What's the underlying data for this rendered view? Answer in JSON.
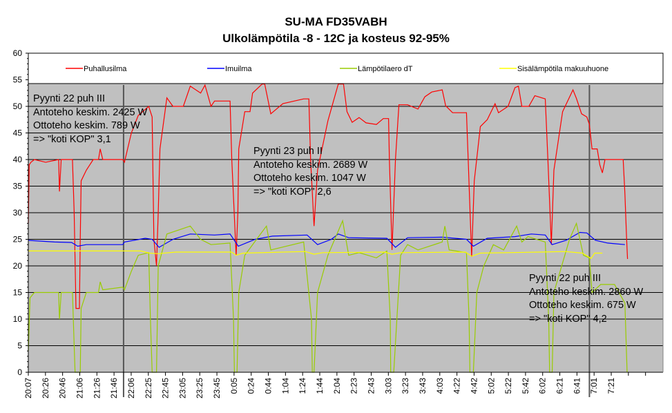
{
  "chart_data": {
    "type": "line",
    "title": "SU-MA FD35VABH",
    "subtitle": "Ulkolämpötila -8 - 12C ja kosteus 92-95%",
    "xlabel": "",
    "ylabel": "",
    "x_unit": "minutes since 20:07",
    "xlim": [
      0,
      733
    ],
    "ylim": [
      0,
      60
    ],
    "y_ticks": [
      0,
      5,
      10,
      15,
      20,
      25,
      30,
      35,
      40,
      45,
      50,
      55,
      60
    ],
    "x_tick_step_minutes": 19.8,
    "x_tick_labels": [
      "20:07",
      "20:26",
      "20:46",
      "21:06",
      "21:26",
      "21:46",
      "22:06",
      "22:25",
      "22:45",
      "23:05",
      "23:25",
      "23:45",
      "0:05",
      "0:24",
      "0:44",
      "1:04",
      "1:24",
      "1:44",
      "2:04",
      "2:23",
      "2:43",
      "3:03",
      "3:23",
      "3:43",
      "4:03",
      "4:22",
      "4:42",
      "5:02",
      "5:22",
      "5:42",
      "6:02",
      "6:21",
      "6:41",
      "7:01",
      "7:21",
      "",
      ""
    ],
    "grid": true,
    "legend_position": "top",
    "series": [
      {
        "name": "Puhallusilma",
        "color": "#ff0000",
        "points": [
          [
            0,
            28
          ],
          [
            1,
            39
          ],
          [
            3,
            39.5
          ],
          [
            7,
            40
          ],
          [
            20,
            39.5
          ],
          [
            35,
            40
          ],
          [
            36,
            34
          ],
          [
            38,
            40
          ],
          [
            51,
            40
          ],
          [
            53,
            30
          ],
          [
            55,
            12
          ],
          [
            59,
            12
          ],
          [
            60,
            25
          ],
          [
            61,
            36
          ],
          [
            67,
            38
          ],
          [
            75,
            40
          ],
          [
            81,
            40
          ],
          [
            83,
            42
          ],
          [
            86,
            40
          ],
          [
            109,
            40
          ],
          [
            111,
            39.5
          ],
          [
            119,
            45
          ],
          [
            127,
            48.3
          ],
          [
            139,
            50
          ],
          [
            143,
            48
          ],
          [
            145,
            25
          ],
          [
            148,
            20
          ],
          [
            150,
            30
          ],
          [
            152,
            42
          ],
          [
            160,
            51.6
          ],
          [
            167,
            50
          ],
          [
            179,
            50
          ],
          [
            187,
            53.8
          ],
          [
            199,
            52.5
          ],
          [
            204,
            54
          ],
          [
            211,
            50
          ],
          [
            215,
            51
          ],
          [
            233,
            51
          ],
          [
            235,
            40
          ],
          [
            240,
            22
          ],
          [
            242,
            30
          ],
          [
            243,
            42
          ],
          [
            250,
            49
          ],
          [
            256,
            49
          ],
          [
            259,
            52.5
          ],
          [
            270,
            54.2
          ],
          [
            273,
            54.2
          ],
          [
            280,
            48.6
          ],
          [
            294,
            50.5
          ],
          [
            318,
            51.4
          ],
          [
            324,
            51.4
          ],
          [
            326,
            40
          ],
          [
            330,
            27.5
          ],
          [
            334,
            38
          ],
          [
            346,
            47.3
          ],
          [
            358,
            54.2
          ],
          [
            364,
            54.2
          ],
          [
            368,
            49
          ],
          [
            374,
            47
          ],
          [
            382,
            47.9
          ],
          [
            390,
            46.9
          ],
          [
            402,
            46.6
          ],
          [
            410,
            47.7
          ],
          [
            416,
            47.7
          ],
          [
            417,
            40
          ],
          [
            420,
            23
          ],
          [
            424,
            40
          ],
          [
            428,
            50.3
          ],
          [
            438,
            50.3
          ],
          [
            450,
            49.5
          ],
          [
            458,
            51.8
          ],
          [
            466,
            52.7
          ],
          [
            478,
            53.1
          ],
          [
            482,
            50.1
          ],
          [
            490,
            48.8
          ],
          [
            506,
            48.8
          ],
          [
            508,
            40
          ],
          [
            512,
            21.7
          ],
          [
            515,
            36
          ],
          [
            522,
            46.2
          ],
          [
            530,
            47.5
          ],
          [
            539,
            50.5
          ],
          [
            543,
            48.8
          ],
          [
            554,
            50
          ],
          [
            562,
            53.5
          ],
          [
            566,
            53.8
          ],
          [
            570,
            50
          ],
          [
            578,
            50
          ],
          [
            585,
            52
          ],
          [
            597,
            51.4
          ],
          [
            600,
            40
          ],
          [
            604,
            24
          ],
          [
            607,
            38
          ],
          [
            617,
            49
          ],
          [
            629,
            53.1
          ],
          [
            633,
            51.5
          ],
          [
            639,
            48.6
          ],
          [
            645,
            48
          ],
          [
            648,
            46.6
          ],
          [
            651,
            42
          ],
          [
            657,
            42
          ],
          [
            660,
            39
          ],
          [
            663,
            37.5
          ],
          [
            666,
            40
          ],
          [
            669,
            40
          ],
          [
            677,
            40
          ],
          [
            687,
            40
          ],
          [
            689,
            33.6
          ],
          [
            691,
            25
          ],
          [
            692,
            21.3
          ]
        ]
      },
      {
        "name": "Imuilma",
        "color": "#0000ff",
        "points": [
          [
            0,
            24.8
          ],
          [
            30,
            24.5
          ],
          [
            50,
            24.4
          ],
          [
            57,
            23.7
          ],
          [
            67,
            24
          ],
          [
            109,
            24
          ],
          [
            111,
            24.5
          ],
          [
            135,
            25.2
          ],
          [
            143,
            25
          ],
          [
            151,
            23.5
          ],
          [
            167,
            25
          ],
          [
            187,
            26
          ],
          [
            215,
            25.8
          ],
          [
            233,
            26
          ],
          [
            242.5,
            23.7
          ],
          [
            262,
            25
          ],
          [
            282,
            25.6
          ],
          [
            322,
            25.8
          ],
          [
            334,
            24
          ],
          [
            350,
            25
          ],
          [
            358,
            26
          ],
          [
            370,
            25.3
          ],
          [
            414,
            25.2
          ],
          [
            424,
            23.5
          ],
          [
            438,
            25.3
          ],
          [
            478,
            25.4
          ],
          [
            506,
            25
          ],
          [
            514,
            23.7
          ],
          [
            530,
            25.2
          ],
          [
            562,
            25.5
          ],
          [
            581,
            26
          ],
          [
            597,
            25.8
          ],
          [
            605,
            24
          ],
          [
            621,
            24.8
          ],
          [
            637,
            26.3
          ],
          [
            645,
            26.2
          ],
          [
            655,
            24.8
          ],
          [
            669,
            24.3
          ],
          [
            689,
            24
          ]
        ]
      },
      {
        "name": "Lämpötilaero dT",
        "color": "#99cc00",
        "points": [
          [
            0,
            4
          ],
          [
            2,
            14
          ],
          [
            7,
            15
          ],
          [
            35,
            15
          ],
          [
            36,
            10
          ],
          [
            38,
            15
          ],
          [
            51,
            15
          ],
          [
            53,
            5
          ],
          [
            54,
            0
          ],
          [
            60,
            0
          ],
          [
            61,
            12
          ],
          [
            67,
            15
          ],
          [
            81,
            15
          ],
          [
            83,
            17
          ],
          [
            86,
            15.5
          ],
          [
            109,
            16
          ],
          [
            111,
            15.5
          ],
          [
            119,
            19
          ],
          [
            127,
            22
          ],
          [
            139,
            22.5
          ],
          [
            141,
            10
          ],
          [
            143,
            0
          ],
          [
            148,
            0
          ],
          [
            150,
            20
          ],
          [
            160,
            26
          ],
          [
            187,
            27.5
          ],
          [
            199,
            25
          ],
          [
            211,
            24
          ],
          [
            233,
            24.3
          ],
          [
            237,
            10
          ],
          [
            238,
            0
          ],
          [
            241,
            0
          ],
          [
            243,
            15
          ],
          [
            250,
            22
          ],
          [
            275,
            27.5
          ],
          [
            280,
            23
          ],
          [
            318,
            24.5
          ],
          [
            327,
            10
          ],
          [
            328,
            0
          ],
          [
            330,
            0
          ],
          [
            334,
            15
          ],
          [
            346,
            22
          ],
          [
            363,
            28.5
          ],
          [
            370,
            22
          ],
          [
            382,
            22.5
          ],
          [
            402,
            21.5
          ],
          [
            414,
            22.8
          ],
          [
            418,
            10
          ],
          [
            418.5,
            0
          ],
          [
            422,
            0
          ],
          [
            430,
            22
          ],
          [
            438,
            24
          ],
          [
            450,
            23
          ],
          [
            478,
            24.5
          ],
          [
            481,
            27.5
          ],
          [
            486,
            23
          ],
          [
            506,
            22.5
          ],
          [
            509,
            10
          ],
          [
            510,
            0
          ],
          [
            514,
            0
          ],
          [
            518,
            15
          ],
          [
            526,
            20
          ],
          [
            537,
            24
          ],
          [
            549,
            23
          ],
          [
            564,
            27.5
          ],
          [
            570,
            24.5
          ],
          [
            577,
            25.5
          ],
          [
            597,
            24.5
          ],
          [
            601,
            10
          ],
          [
            602,
            0
          ],
          [
            605,
            0
          ],
          [
            607,
            15
          ],
          [
            625,
            25
          ],
          [
            633,
            28
          ],
          [
            641,
            22
          ],
          [
            648,
            21.5
          ],
          [
            651,
            15
          ],
          [
            661,
            16.5
          ],
          [
            677,
            16.5
          ],
          [
            689,
            13
          ],
          [
            691.5,
            0
          ]
        ]
      },
      {
        "name": "Sisälämpötila makuuhuone",
        "color": "#ffff00",
        "points": [
          [
            0,
            22.8
          ],
          [
            60,
            22.8
          ],
          [
            130,
            22.8
          ],
          [
            140,
            22.4
          ],
          [
            150,
            22.3
          ],
          [
            170,
            22.6
          ],
          [
            235,
            22.6
          ],
          [
            240,
            22
          ],
          [
            248,
            22.4
          ],
          [
            320,
            22.7
          ],
          [
            330,
            22.2
          ],
          [
            340,
            22.5
          ],
          [
            412,
            22.6
          ],
          [
            420,
            22.2
          ],
          [
            430,
            22.5
          ],
          [
            505,
            22.6
          ],
          [
            512,
            21.8
          ],
          [
            522,
            22.4
          ],
          [
            590,
            22.6
          ],
          [
            620,
            22.7
          ],
          [
            640,
            22.4
          ],
          [
            650,
            21.4
          ],
          [
            654,
            22.4
          ],
          [
            663,
            22.4
          ]
        ]
      }
    ],
    "annotations": [
      {
        "lines": [
          "Pyynti 22 puh III",
          "Antoteho keskim. 2425 W",
          "Ottoteho keskim. 789 W",
          "=> \"koti KOP\" 3,1"
        ]
      },
      {
        "lines": [
          "Pyynti 23 puh II",
          "Antoteho keskim. 2689 W",
          "Ottoteho keskim. 1047 W",
          "=> \"koti KOP\" 2,6"
        ]
      },
      {
        "lines": [
          "Pyynti 22 puh III",
          "Antoteho keskim. 2860 W",
          "Ottoteho keskim. 675 W",
          "=> \"koti KOP\" 4,2"
        ]
      }
    ],
    "vertical_markers_minutes": [
      110,
      648
    ],
    "plot_color": "#c0c0c0"
  }
}
